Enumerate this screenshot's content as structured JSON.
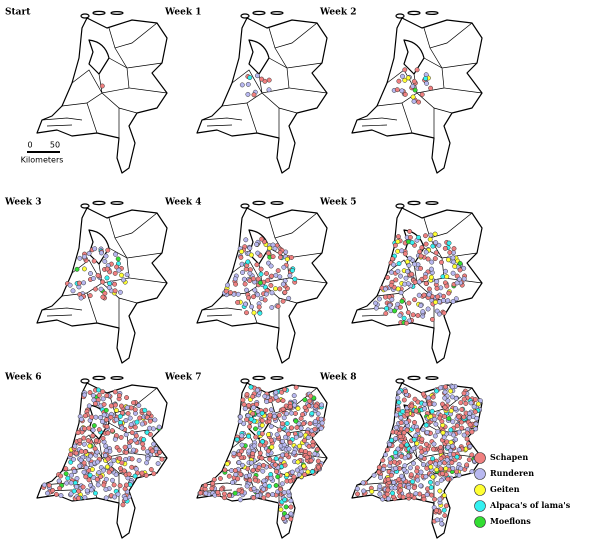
{
  "panels": [
    {
      "label": "Start"
    },
    {
      "label": "Week 1"
    },
    {
      "label": "Week 2"
    },
    {
      "label": "Week 3"
    },
    {
      "label": "Week 4"
    },
    {
      "label": "Week 5"
    },
    {
      "label": "Week 6"
    },
    {
      "label": "Week 7"
    },
    {
      "label": "Week 8"
    }
  ],
  "scale_bar": {
    "start": "0",
    "end": "50",
    "unit": "Kilometers"
  },
  "legend": [
    {
      "label": "Schapen",
      "color": "#f08080"
    },
    {
      "label": "Runderen",
      "color": "#b8b8f0"
    },
    {
      "label": "Geiten",
      "color": "#ffff33"
    },
    {
      "label": "Alpaca's of lama's",
      "color": "#33f0f0"
    },
    {
      "label": "Moeflons",
      "color": "#33dd33"
    }
  ]
}
